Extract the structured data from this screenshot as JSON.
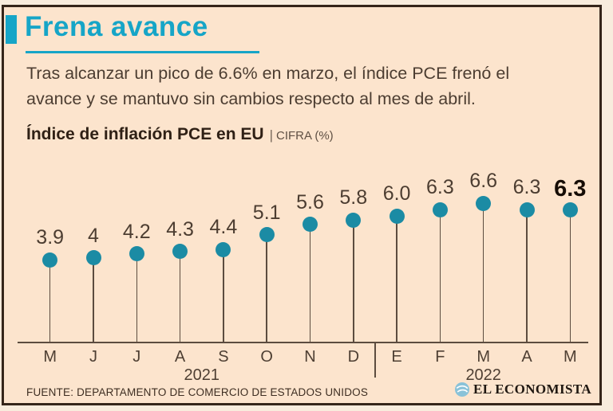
{
  "colors": {
    "background": "#fce4cd",
    "outer_background": "#f8ecdd",
    "border": "#35251a",
    "accent_teal": "#16a5c7",
    "dot_teal": "#1b8ba4",
    "text_dark": "#4c3d31",
    "highlight_text": "#160d06"
  },
  "header": {
    "title": "Frena avance",
    "description_line1": "Tras alcanzar un pico de 6.6% en marzo, el índice PCE frenó el",
    "description_line2": "avance y se mantuvo sin cambios respecto al mes de abril."
  },
  "chart": {
    "title_bold": "Índice de inflación PCE en EU",
    "title_sep": "|",
    "title_unit": "CIFRA (%)"
  },
  "chart_data": {
    "type": "scatter",
    "style": "lollipop",
    "title": "Índice de inflación PCE en EU",
    "unit_label": "CIFRA (%)",
    "categories": [
      "M",
      "J",
      "J",
      "A",
      "S",
      "O",
      "N",
      "D",
      "E",
      "F",
      "M",
      "A",
      "M"
    ],
    "values": [
      3.9,
      4,
      4.2,
      4.3,
      4.4,
      5.1,
      5.6,
      5.8,
      6.0,
      6.3,
      6.6,
      6.3,
      6.3
    ],
    "value_labels": [
      "3.9",
      "4",
      "4.2",
      "4.3",
      "4.4",
      "5.1",
      "5.6",
      "5.8",
      "6.0",
      "6.3",
      "6.6",
      "6.3",
      "6.3"
    ],
    "year_groups": [
      {
        "label": "2021",
        "from": 0,
        "to": 7
      },
      {
        "label": "2022",
        "from": 8,
        "to": 12
      }
    ],
    "highlight_last_point": true,
    "ylim": [
      0,
      7
    ],
    "xlabel": "",
    "ylabel": "CIFRA (%)",
    "legend": "none",
    "grid": false
  },
  "footer": {
    "source": "FUENTE: DEPARTAMENTO DE COMERCIO DE ESTADOS UNIDOS",
    "brand": "EL ECONOMISTA"
  }
}
